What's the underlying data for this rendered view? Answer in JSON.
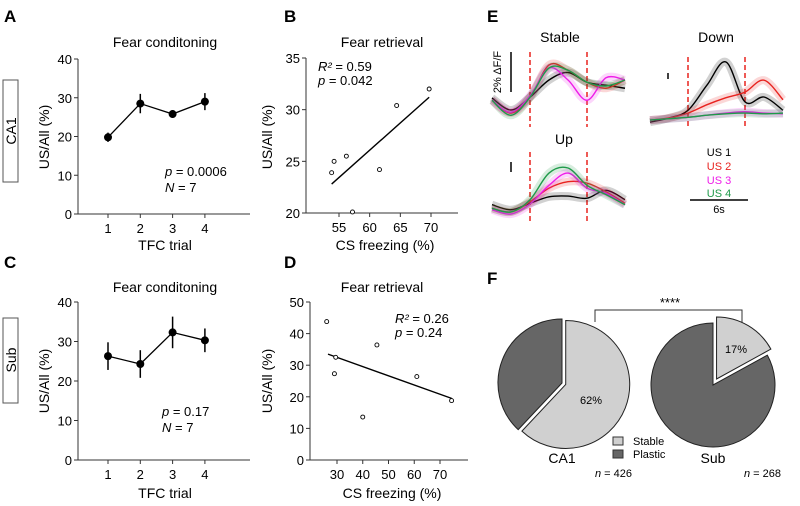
{
  "panels": {
    "A": "A",
    "B": "B",
    "C": "C",
    "D": "D",
    "E": "E",
    "F": "F"
  },
  "chart_data": [
    {
      "id": "A",
      "type": "line",
      "title": "Fear conditoning",
      "row_label": "CA1",
      "xlabel": "TFC trial",
      "ylabel": "US/All (%)",
      "categories": [
        "1",
        "2",
        "3",
        "4"
      ],
      "values": [
        19.8,
        28.5,
        25.8,
        29.0
      ],
      "errors": [
        1.2,
        2.5,
        1.0,
        2.2
      ],
      "ylim": [
        0,
        40
      ],
      "yticks": [
        "0",
        "10",
        "20",
        "30",
        "40"
      ],
      "stats": {
        "p_label": "p",
        "p_value": " = 0.0006",
        "n_label": "N",
        "n_value": " = 7"
      }
    },
    {
      "id": "B",
      "type": "scatter",
      "title": "Fear retrieval",
      "xlabel": "CS freezing (%)",
      "ylabel": "US/All (%)",
      "x": [
        53.8,
        54.2,
        56.2,
        57.2,
        61.6,
        64.4,
        69.7
      ],
      "y": [
        23.9,
        25.0,
        25.5,
        20.1,
        24.2,
        30.4,
        32.0
      ],
      "fit": {
        "x": [
          53.8,
          69.7
        ],
        "y": [
          22.8,
          31.2
        ]
      },
      "xlim": [
        50,
        74
      ],
      "ylim": [
        20,
        35
      ],
      "xticks": [
        "55",
        "60",
        "65",
        "70"
      ],
      "yticks": [
        "20",
        "25",
        "30",
        "35"
      ],
      "stats": {
        "r2_label": "R²",
        "r2_value": " = 0.59",
        "p_label": "p",
        "p_value": " = 0.042"
      }
    },
    {
      "id": "C",
      "type": "line",
      "title": "Fear conditoning",
      "row_label": "Sub",
      "xlabel": "TFC trial",
      "ylabel": "US/All (%)",
      "categories": [
        "1",
        "2",
        "3",
        "4"
      ],
      "values": [
        26.3,
        24.3,
        32.3,
        30.3
      ],
      "errors": [
        3.5,
        3.5,
        4.0,
        3.0
      ],
      "ylim": [
        0,
        40
      ],
      "yticks": [
        "0",
        "10",
        "20",
        "30",
        "40"
      ],
      "stats": {
        "p_label": "p",
        "p_value": " = 0.17",
        "n_label": "N",
        "n_value": " = 7"
      }
    },
    {
      "id": "D",
      "type": "scatter",
      "title": "Fear retrieval",
      "xlabel": "CS freezing (%)",
      "ylabel": "US/All (%)",
      "x": [
        26.0,
        29.5,
        29.0,
        40.0,
        45.5,
        61.0,
        74.5
      ],
      "y": [
        43.8,
        32.5,
        27.3,
        13.6,
        36.4,
        26.4,
        18.8
      ],
      "fit": {
        "x": [
          26.5,
          74.5
        ],
        "y": [
          33.5,
          19.5
        ]
      },
      "xlim": [
        18,
        78
      ],
      "ylim": [
        0,
        50
      ],
      "xticks": [
        "30",
        "40",
        "50",
        "60",
        "70"
      ],
      "yticks": [
        "0",
        "10",
        "20",
        "30",
        "40",
        "50"
      ],
      "stats": {
        "r2_label": "R²",
        "r2_value": " = 0.26",
        "p_label": "p",
        "p_value": " = 0.24"
      }
    },
    {
      "id": "E",
      "type": "line",
      "time_s": [
        0,
        2,
        4,
        6,
        8,
        10,
        12,
        14
      ],
      "events_s": [
        4,
        10
      ],
      "scale_bar_y": "2% ΔF/F",
      "scale_bar_x": "6s",
      "legend": [
        "US 1",
        "US 2",
        "US 3",
        "US 4"
      ],
      "colors": [
        "#000000",
        "#e8231f",
        "#ee1de8",
        "#1f9a4a"
      ],
      "groups": [
        {
          "name": "Stable",
          "series": [
            [
              0.36,
              0.2,
              0.37,
              0.6,
              0.7,
              0.57,
              0.53,
              0.49
            ],
            [
              0.33,
              0.16,
              0.37,
              0.8,
              0.73,
              0.57,
              0.49,
              0.6
            ],
            [
              0.33,
              0.17,
              0.39,
              0.76,
              0.6,
              0.33,
              0.63,
              0.6
            ],
            [
              0.33,
              0.13,
              0.37,
              0.76,
              0.73,
              0.57,
              0.52,
              0.6
            ]
          ]
        },
        {
          "name": "Down",
          "series": [
            [
              0.04,
              0.1,
              0.21,
              0.57,
              0.9,
              0.33,
              0.4,
              0.21
            ],
            [
              0.07,
              0.1,
              0.17,
              0.29,
              0.39,
              0.47,
              0.64,
              0.36
            ],
            [
              0.07,
              0.09,
              0.11,
              0.14,
              0.17,
              0.19,
              0.17,
              0.16
            ],
            [
              0.07,
              0.09,
              0.11,
              0.14,
              0.16,
              0.17,
              0.16,
              0.17
            ]
          ]
        },
        {
          "name": "Up",
          "series": [
            [
              0.24,
              0.17,
              0.26,
              0.35,
              0.36,
              0.33,
              0.44,
              0.31
            ],
            [
              0.19,
              0.14,
              0.28,
              0.47,
              0.56,
              0.54,
              0.42,
              0.26
            ],
            [
              0.17,
              0.11,
              0.25,
              0.51,
              0.68,
              0.47,
              0.4,
              0.24
            ],
            [
              0.19,
              0.14,
              0.31,
              0.68,
              0.75,
              0.51,
              0.38,
              0.24
            ]
          ]
        }
      ]
    },
    {
      "id": "F",
      "type": "pie",
      "legend": [
        "Stable",
        "Plastic"
      ],
      "colors": {
        "Stable": "#d0d0d0",
        "Plastic": "#666666"
      },
      "significance": "****",
      "pies": [
        {
          "name": "CA1",
          "stable": 62,
          "plastic": 38,
          "label": "62%",
          "n_label": "n",
          "n_value": " = 426"
        },
        {
          "name": "Sub",
          "stable": 17,
          "plastic": 83,
          "label": "17%",
          "n_label": "n",
          "n_value": " = 268"
        }
      ]
    }
  ]
}
